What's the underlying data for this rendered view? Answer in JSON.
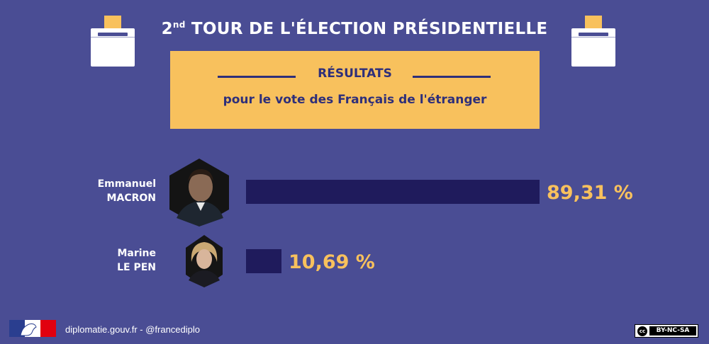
{
  "header": {
    "title_ordinal": "2",
    "title_ordinal_suffix": "nd",
    "title_rest": " TOUR DE L'ÉLECTION PRÉSIDENTIELLE"
  },
  "panel": {
    "heading": "RÉSULTATS",
    "subheading": "pour le vote des Français de l'étranger"
  },
  "candidates": [
    {
      "first_name": "Emmanuel",
      "last_name": "MACRON",
      "value_label": "89,31 %"
    },
    {
      "first_name": "Marine",
      "last_name": "LE PEN",
      "value_label": "10,69 %"
    }
  ],
  "chart_data": {
    "type": "bar",
    "orientation": "horizontal",
    "categories": [
      "Emmanuel MACRON",
      "Marine LE PEN"
    ],
    "values": [
      89.31,
      10.69
    ],
    "unit": "%",
    "xlim": [
      0,
      89.31
    ],
    "bar_color": "#1f1b5c",
    "label_color": "#f8c15d"
  },
  "footer": {
    "site": "diplomatie.gouv.fr - @francediplo",
    "license": "BY-NC-SA",
    "license_mark": "cc"
  },
  "colors": {
    "background": "#4a4d94",
    "accent": "#f8c15d",
    "dark": "#2e2f7a",
    "bar": "#1f1b5c"
  },
  "icons": {
    "ballot_left": "ballot-box-icon",
    "ballot_right": "ballot-box-icon",
    "flag": "marianne-flag-icon",
    "license": "creative-commons-icon"
  }
}
